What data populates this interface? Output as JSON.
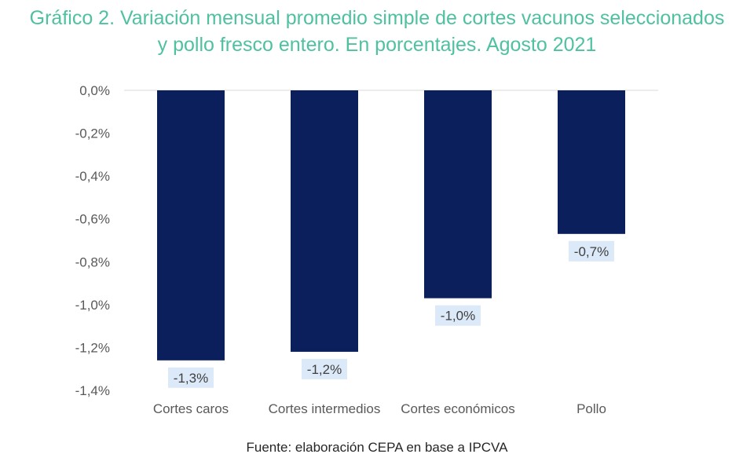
{
  "title_line1": "Gráfico 2. Variación mensual promedio simple de cortes vacunos seleccionados",
  "title_line2": "y pollo fresco entero. En porcentajes. Agosto 2021",
  "source": "Fuente: elaboración CEPA en base a IPCVA",
  "colors": {
    "bar": "#0a1f5c",
    "label_bg": "#dce9f8",
    "title": "#4fc1a0",
    "grid": "#d9d9d9"
  },
  "chart_data": {
    "type": "bar",
    "categories": [
      "Cortes caros",
      "Cortes intermedios",
      "Cortes económicos",
      "Pollo"
    ],
    "values": [
      -1.26,
      -1.22,
      -0.97,
      -0.67
    ],
    "data_labels": [
      "-1,3%",
      "-1,2%",
      "-1,0%",
      "-0,7%"
    ],
    "y_ticks": [
      0,
      -0.2,
      -0.4,
      -0.6,
      -0.8,
      -1.0,
      -1.2,
      -1.4
    ],
    "y_tick_labels": [
      "0,0%",
      "-0,2%",
      "-0,4%",
      "-0,6%",
      "-0,8%",
      "-1,0%",
      "-1,2%",
      "-1,4%"
    ],
    "ylim": [
      -1.4,
      0
    ],
    "grid": false,
    "legend": "none"
  }
}
